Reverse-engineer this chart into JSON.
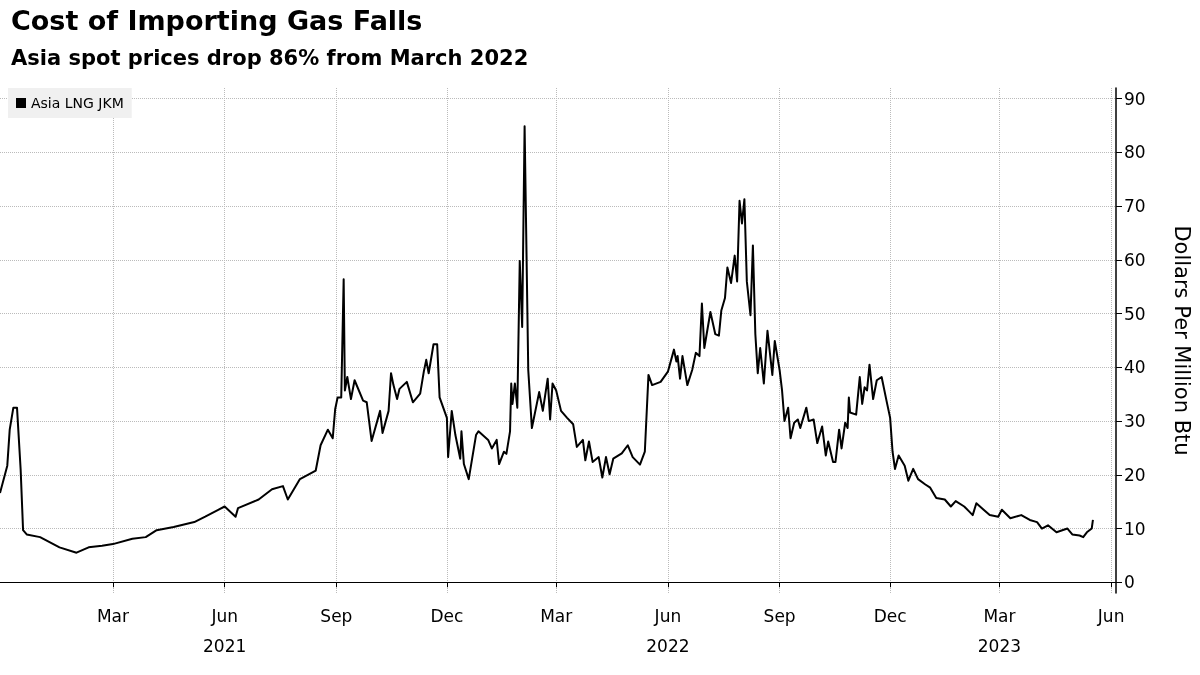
{
  "chart_data": {
    "type": "line",
    "title": "Cost of Importing Gas Falls",
    "subtitle": "Asia spot prices drop 86% from March 2022",
    "ylabel": "Dollars Per Million Btu",
    "xlim": [
      "2020-11-28",
      "2023-06-05"
    ],
    "ylim": [
      -2,
      92
    ],
    "xticks": [
      {
        "value": "2021-03-01",
        "label": "Mar"
      },
      {
        "value": "2021-06-01",
        "label": "Jun\n2021"
      },
      {
        "value": "2021-09-01",
        "label": "Sep"
      },
      {
        "value": "2021-12-01",
        "label": "Dec"
      },
      {
        "value": "2022-03-01",
        "label": "Mar"
      },
      {
        "value": "2022-06-01",
        "label": "Jun\n2022"
      },
      {
        "value": "2022-09-01",
        "label": "Sep"
      },
      {
        "value": "2022-12-01",
        "label": "Dec"
      },
      {
        "value": "2023-03-01",
        "label": "Mar\n2023"
      },
      {
        "value": "2023-06-01",
        "label": "Jun"
      }
    ],
    "yticks": [
      0,
      10,
      20,
      30,
      40,
      50,
      60,
      70,
      80,
      90
    ],
    "grid": true,
    "legend": "top left",
    "marker": "none",
    "line_style": "solid",
    "series": [
      {
        "name": "Asia LNG JKM",
        "color": "#000000",
        "x": [
          "2020-11-28",
          "2020-12-04",
          "2020-12-06",
          "2020-12-09",
          "2020-12-12",
          "2020-12-15",
          "2020-12-17",
          "2020-12-20",
          "2020-12-31",
          "2021-01-16",
          "2021-01-30",
          "2021-02-09",
          "2021-02-20",
          "2021-03-01",
          "2021-03-17",
          "2021-03-28",
          "2021-04-06",
          "2021-04-20",
          "2021-05-07",
          "2021-05-16",
          "2021-06-01",
          "2021-06-10",
          "2021-06-12",
          "2021-06-29",
          "2021-07-10",
          "2021-07-19",
          "2021-07-23",
          "2021-08-02",
          "2021-08-15",
          "2021-08-19",
          "2021-08-25",
          "2021-08-29",
          "2021-08-31",
          "2021-09-02",
          "2021-09-05",
          "2021-09-07",
          "2021-09-08",
          "2021-09-10",
          "2021-09-13",
          "2021-09-16",
          "2021-09-23",
          "2021-09-26",
          "2021-09-30",
          "2021-10-07",
          "2021-10-09",
          "2021-10-14",
          "2021-10-16",
          "2021-10-18",
          "2021-10-21",
          "2021-10-23",
          "2021-10-29",
          "2021-11-03",
          "2021-11-09",
          "2021-11-12",
          "2021-11-14",
          "2021-11-16",
          "2021-11-20",
          "2021-11-23",
          "2021-11-25",
          "2021-12-01",
          "2021-12-02",
          "2021-12-05",
          "2021-12-08",
          "2021-12-12",
          "2021-12-13",
          "2021-12-15",
          "2021-12-19",
          "2021-12-25",
          "2021-12-27",
          "2022-01-04",
          "2022-01-07",
          "2022-01-11",
          "2022-01-13",
          "2022-01-17",
          "2022-01-19",
          "2022-01-22",
          "2022-01-23",
          "2022-01-24",
          "2022-01-26",
          "2022-01-28",
          "2022-01-30",
          "2022-02-01",
          "2022-02-03",
          "2022-02-06",
          "2022-02-09",
          "2022-02-15",
          "2022-02-18",
          "2022-02-22",
          "2022-02-24",
          "2022-02-26",
          "2022-03-01",
          "2022-03-05",
          "2022-03-10",
          "2022-03-15",
          "2022-03-18",
          "2022-03-23",
          "2022-03-25",
          "2022-03-28",
          "2022-03-31",
          "2022-04-05",
          "2022-04-08",
          "2022-04-11",
          "2022-04-14",
          "2022-04-17",
          "2022-04-24",
          "2022-04-29",
          "2022-05-03",
          "2022-05-09",
          "2022-05-13",
          "2022-05-16",
          "2022-05-19",
          "2022-05-26",
          "2022-06-01",
          "2022-06-06",
          "2022-06-08",
          "2022-06-09",
          "2022-06-11",
          "2022-06-13",
          "2022-06-17",
          "2022-06-21",
          "2022-06-24",
          "2022-06-27",
          "2022-06-29",
          "2022-07-01",
          "2022-07-06",
          "2022-07-10",
          "2022-07-13",
          "2022-07-15",
          "2022-07-18",
          "2022-07-20",
          "2022-07-23",
          "2022-07-26",
          "2022-07-28",
          "2022-07-30",
          "2022-08-01",
          "2022-08-03",
          "2022-08-05",
          "2022-08-08",
          "2022-08-10",
          "2022-08-12",
          "2022-08-14",
          "2022-08-16",
          "2022-08-19",
          "2022-08-22",
          "2022-08-26",
          "2022-08-28",
          "2022-09-01",
          "2022-09-03",
          "2022-09-05",
          "2022-09-08",
          "2022-09-10",
          "2022-09-13",
          "2022-09-16",
          "2022-09-18",
          "2022-09-23",
          "2022-09-25",
          "2022-09-29",
          "2022-10-02",
          "2022-10-06",
          "2022-10-09",
          "2022-10-11",
          "2022-10-15",
          "2022-10-17",
          "2022-10-20",
          "2022-10-22",
          "2022-10-25",
          "2022-10-27",
          "2022-10-28",
          "2022-10-29",
          "2022-11-03",
          "2022-11-06",
          "2022-11-08",
          "2022-11-10",
          "2022-11-12",
          "2022-11-14",
          "2022-11-17",
          "2022-11-20",
          "2022-11-24",
          "2022-11-28",
          "2022-12-01",
          "2022-12-03",
          "2022-12-05",
          "2022-12-08",
          "2022-12-13",
          "2022-12-16",
          "2022-12-20",
          "2022-12-24",
          "2022-12-30",
          "2023-01-03",
          "2023-01-08",
          "2023-01-15",
          "2023-01-20",
          "2023-01-24",
          "2023-01-31",
          "2023-02-04",
          "2023-02-07",
          "2023-02-10",
          "2023-02-16",
          "2023-02-21",
          "2023-02-28",
          "2023-03-03",
          "2023-03-10",
          "2023-03-19",
          "2023-03-26",
          "2023-04-01",
          "2023-04-05",
          "2023-04-10",
          "2023-04-17",
          "2023-04-26",
          "2023-04-30",
          "2023-05-06",
          "2023-05-09",
          "2023-05-12",
          "2023-05-16",
          "2023-05-17"
        ],
        "values": [
          16.6,
          21.7,
          28.4,
          32.5,
          32.5,
          21,
          9.7,
          8.9,
          8.4,
          6.5,
          5.5,
          6.5,
          6.8,
          7.1,
          8.1,
          8.4,
          9.7,
          10.3,
          11.2,
          12.2,
          14.1,
          12.2,
          13.8,
          15.4,
          17.3,
          17.9,
          15.4,
          19.2,
          20.8,
          25.5,
          28.4,
          26.8,
          32.2,
          34.4,
          34.4,
          56.4,
          35.7,
          38.2,
          34.1,
          37.6,
          33.8,
          33.5,
          26.3,
          31.9,
          27.8,
          31.9,
          38.9,
          36.7,
          34.1,
          36,
          37.3,
          33.5,
          35.1,
          39.2,
          41.4,
          38.9,
          44.3,
          44.3,
          34.4,
          30.6,
          23.3,
          31.9,
          27.4,
          23,
          28.1,
          22,
          19.2,
          27.4,
          28.1,
          26.5,
          24.9,
          26.5,
          22,
          24.3,
          23.9,
          28.1,
          37,
          33.2,
          37,
          32.5,
          59.8,
          47.5,
          84.9,
          39.5,
          28.7,
          35.4,
          31.9,
          37.9,
          30.3,
          37,
          35.7,
          31.9,
          30.6,
          29.4,
          25.2,
          26.5,
          22.7,
          26.2,
          22.4,
          23.3,
          19.5,
          23.3,
          20.1,
          23,
          24,
          25.5,
          23.3,
          21.9,
          24.3,
          38.6,
          36.7,
          37.3,
          39.2,
          43.3,
          41.1,
          42.1,
          37.9,
          42.1,
          36.7,
          39.5,
          42.7,
          42.1,
          51.9,
          43.6,
          50.3,
          46.2,
          45.9,
          50.6,
          52.9,
          58.6,
          55.7,
          60.8,
          56,
          71,
          66.8,
          71.3,
          56,
          49.7,
          62.7,
          46.2,
          38.9,
          43.6,
          37,
          46.8,
          38.6,
          44.9,
          39.5,
          35.7,
          30,
          32.5,
          26.8,
          29.7,
          30.3,
          28.7,
          32.5,
          30,
          30.3,
          25.9,
          29,
          23.6,
          26.2,
          22.4,
          22.4,
          28.4,
          24.9,
          29.7,
          28.7,
          34.4,
          31.6,
          31.2,
          38.2,
          33.2,
          36.3,
          35.7,
          40.5,
          34.1,
          37.6,
          38.2,
          33.8,
          30.6,
          24.3,
          21.1,
          23.6,
          21.7,
          18.9,
          21.1,
          19.2,
          18.2,
          17.6,
          15.7,
          15.4,
          14.1,
          15.1,
          14.1,
          13.2,
          12.5,
          14.7,
          13.5,
          12.5,
          12.2,
          13.5,
          11.9,
          12.5,
          11.6,
          11.2,
          10,
          10.6,
          9.3,
          10,
          8.9,
          8.7,
          8.4,
          9.3,
          10,
          11.6
        ]
      }
    ]
  }
}
